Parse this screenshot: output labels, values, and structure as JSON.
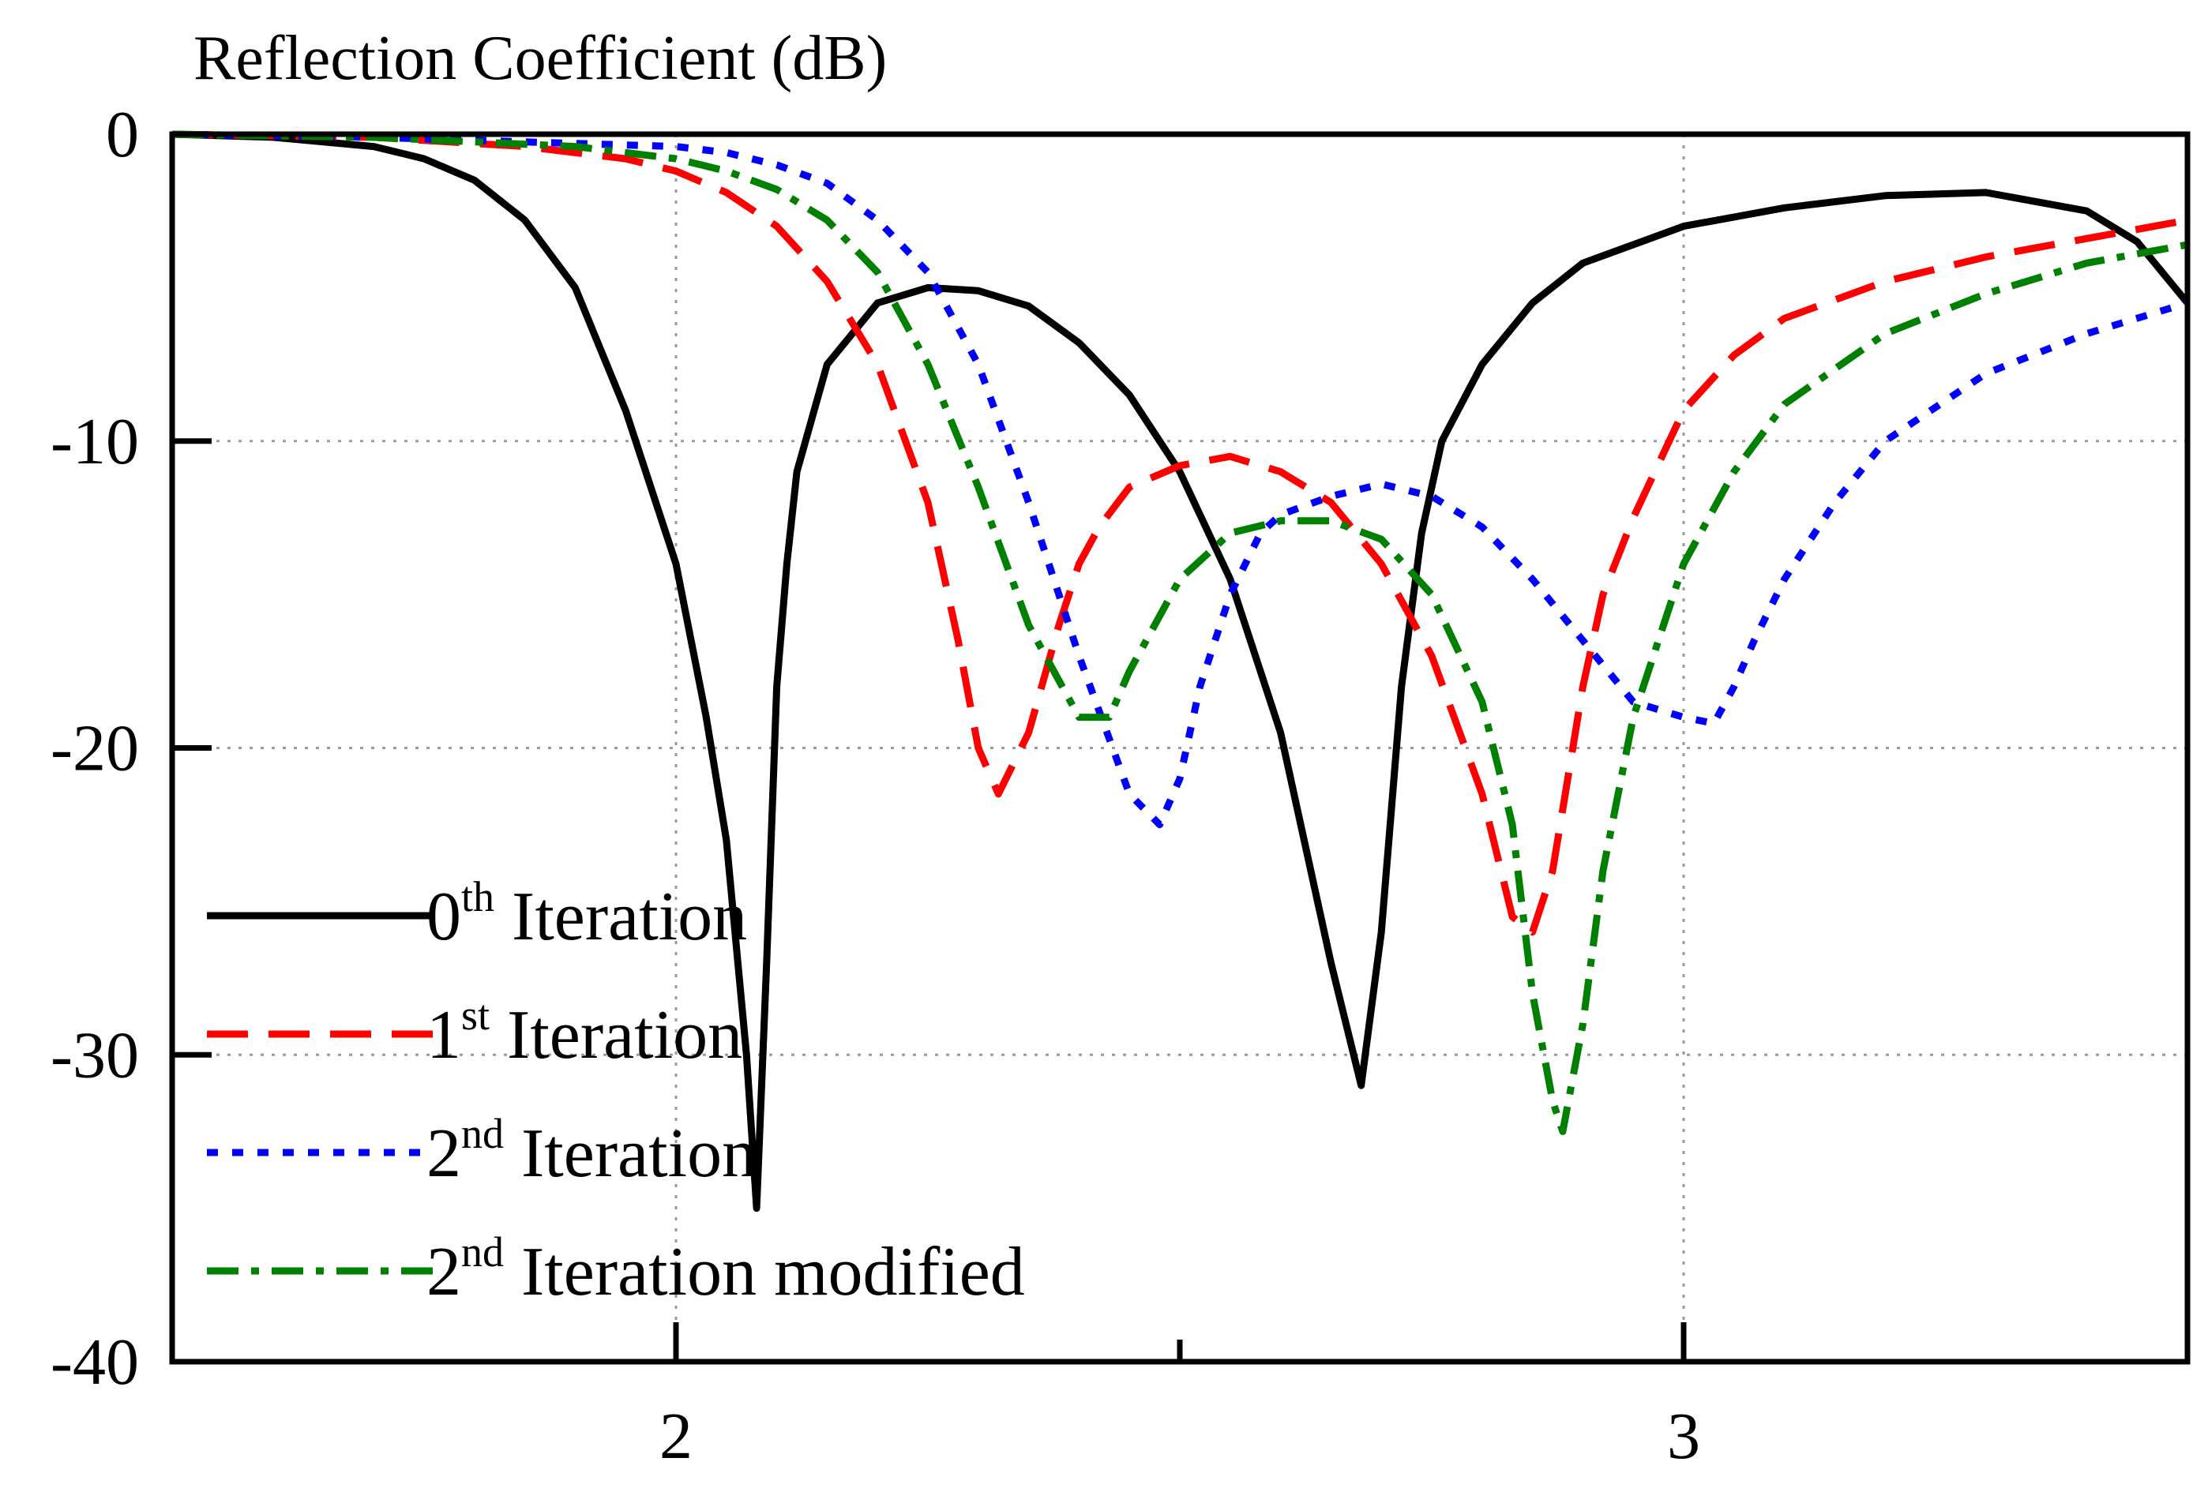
{
  "chart_data": {
    "type": "line",
    "title": "Reflection Coefficient (dB)",
    "xlabel": "",
    "ylabel": "Reflection Coefficient (dB)",
    "xlim": [
      1.5,
      3.5
    ],
    "ylim": [
      -40,
      0
    ],
    "xticks": [
      {
        "value": 2,
        "label": "2"
      },
      {
        "value": 3,
        "label": "3"
      }
    ],
    "xminor_ticks": [
      2.5
    ],
    "yticks": [
      {
        "value": 0,
        "label": "0"
      },
      {
        "value": -10,
        "label": "-10"
      },
      {
        "value": -20,
        "label": "-20"
      },
      {
        "value": -30,
        "label": "-30"
      },
      {
        "value": -40,
        "label": "-40"
      }
    ],
    "grid": true,
    "legend_position": "bottom-left",
    "series": [
      {
        "name": "0th Iteration",
        "legend_base": "0",
        "legend_sup": "th",
        "legend_rest": " Iteration",
        "color": "#000000",
        "dash": "solid",
        "x": [
          1.5,
          1.6,
          1.7,
          1.75,
          1.8,
          1.85,
          1.9,
          1.95,
          2.0,
          2.03,
          2.05,
          2.07,
          2.08,
          2.09,
          2.1,
          2.11,
          2.12,
          2.15,
          2.2,
          2.25,
          2.3,
          2.35,
          2.4,
          2.45,
          2.5,
          2.55,
          2.6,
          2.65,
          2.68,
          2.7,
          2.72,
          2.74,
          2.76,
          2.8,
          2.85,
          2.9,
          3.0,
          3.1,
          3.2,
          3.3,
          3.4,
          3.45,
          3.5
        ],
        "y": [
          0,
          -0.1,
          -0.4,
          -0.8,
          -1.5,
          -2.8,
          -5.0,
          -9.0,
          -14.0,
          -19.0,
          -23.0,
          -30.0,
          -35.0,
          -27.0,
          -18.0,
          -14.0,
          -11.0,
          -7.5,
          -5.5,
          -5.0,
          -5.1,
          -5.6,
          -6.8,
          -8.5,
          -11.0,
          -14.5,
          -19.5,
          -27.0,
          -31.0,
          -26.0,
          -18.0,
          -13.0,
          -10.0,
          -7.5,
          -5.5,
          -4.2,
          -3.0,
          -2.4,
          -2.0,
          -1.9,
          -2.5,
          -3.5,
          -5.5
        ]
      },
      {
        "name": "1st Iteration",
        "legend_base": "1",
        "legend_sup": "st",
        "legend_rest": " Iteration",
        "color": "#ff0000",
        "dash": "long-dash",
        "x": [
          1.5,
          1.7,
          1.85,
          1.95,
          2.0,
          2.05,
          2.1,
          2.15,
          2.2,
          2.25,
          2.28,
          2.3,
          2.32,
          2.35,
          2.38,
          2.4,
          2.42,
          2.45,
          2.5,
          2.55,
          2.6,
          2.65,
          2.7,
          2.75,
          2.8,
          2.83,
          2.85,
          2.87,
          2.88,
          2.9,
          2.92,
          2.95,
          3.0,
          3.05,
          3.1,
          3.2,
          3.3,
          3.4,
          3.5
        ],
        "y": [
          0,
          -0.1,
          -0.4,
          -0.8,
          -1.2,
          -1.9,
          -3.0,
          -4.8,
          -7.5,
          -12.0,
          -16.5,
          -20.0,
          -21.5,
          -19.5,
          -16.0,
          -14.0,
          -12.8,
          -11.5,
          -10.8,
          -10.5,
          -11.0,
          -12.0,
          -14.0,
          -17.0,
          -21.5,
          -25.5,
          -26.0,
          -24.0,
          -22.0,
          -18.0,
          -15.0,
          -12.5,
          -9.0,
          -7.2,
          -6.0,
          -4.8,
          -4.0,
          -3.4,
          -2.8
        ]
      },
      {
        "name": "2nd Iteration",
        "legend_base": "2",
        "legend_sup": "nd",
        "legend_rest": " Iteration",
        "color": "#0000ff",
        "dash": "dot",
        "x": [
          1.5,
          1.7,
          1.9,
          2.0,
          2.05,
          2.1,
          2.15,
          2.2,
          2.25,
          2.3,
          2.35,
          2.4,
          2.45,
          2.48,
          2.5,
          2.52,
          2.55,
          2.58,
          2.6,
          2.65,
          2.7,
          2.75,
          2.8,
          2.85,
          2.9,
          2.95,
          3.0,
          3.03,
          3.05,
          3.07,
          3.1,
          3.15,
          3.2,
          3.3,
          3.4,
          3.5
        ],
        "y": [
          0,
          -0.1,
          -0.3,
          -0.4,
          -0.6,
          -1.0,
          -1.6,
          -2.8,
          -4.5,
          -7.5,
          -12.0,
          -17.0,
          -21.5,
          -22.5,
          -21.0,
          -18.0,
          -15.0,
          -13.0,
          -12.4,
          -11.8,
          -11.4,
          -11.8,
          -12.8,
          -14.5,
          -16.5,
          -18.5,
          -19.0,
          -19.2,
          -18.0,
          -16.5,
          -14.5,
          -12.0,
          -10.0,
          -7.8,
          -6.5,
          -5.5
        ]
      },
      {
        "name": "2nd Iteration modified",
        "legend_base": "2",
        "legend_sup": "nd",
        "legend_rest": " Iteration modified",
        "color": "#008000",
        "dash": "dash-dot",
        "x": [
          1.5,
          1.7,
          1.9,
          2.0,
          2.05,
          2.1,
          2.15,
          2.2,
          2.25,
          2.3,
          2.35,
          2.4,
          2.43,
          2.45,
          2.5,
          2.55,
          2.6,
          2.65,
          2.7,
          2.75,
          2.8,
          2.83,
          2.85,
          2.87,
          2.88,
          2.9,
          2.92,
          2.95,
          3.0,
          3.05,
          3.1,
          3.2,
          3.3,
          3.4,
          3.5
        ],
        "y": [
          0,
          -0.1,
          -0.4,
          -0.8,
          -1.2,
          -1.8,
          -2.8,
          -4.5,
          -7.5,
          -11.5,
          -16.0,
          -19.0,
          -19.0,
          -17.5,
          -14.5,
          -13.0,
          -12.6,
          -12.6,
          -13.2,
          -15.0,
          -18.5,
          -22.5,
          -28.0,
          -31.5,
          -32.5,
          -29.0,
          -24.0,
          -19.0,
          -14.0,
          -11.0,
          -8.8,
          -6.5,
          -5.2,
          -4.2,
          -3.6
        ]
      }
    ]
  }
}
